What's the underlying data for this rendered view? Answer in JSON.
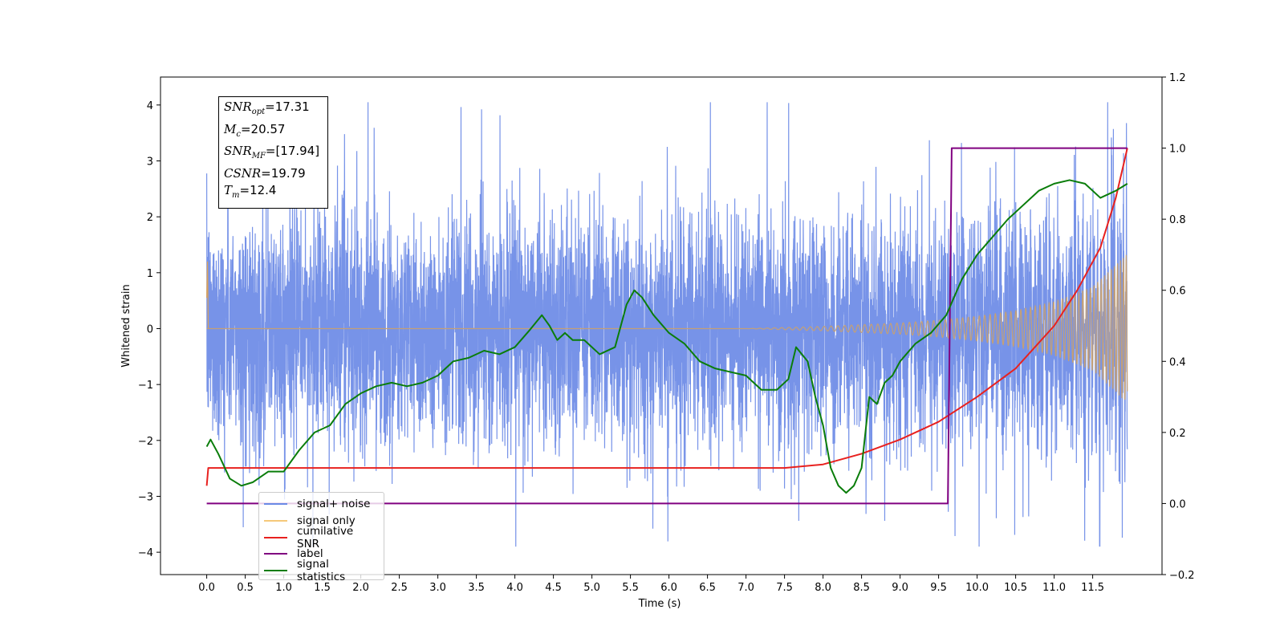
{
  "chart_data": {
    "type": "line",
    "xlabel": "Time (s)",
    "ylabel": "Whitened strain",
    "xlim": [
      -0.6,
      12.4
    ],
    "ylim": [
      -4.4,
      4.5
    ],
    "ylim_right": [
      -0.2,
      1.2
    ],
    "xticks": [
      "0.0",
      "0.5",
      "1.0",
      "1.5",
      "2.0",
      "2.5",
      "3.0",
      "3.5",
      "4.0",
      "4.5",
      "5.0",
      "5.5",
      "6.0",
      "6.5",
      "7.0",
      "7.5",
      "8.0",
      "8.5",
      "9.0",
      "9.5",
      "10.0",
      "10.5",
      "11.0",
      "11.5"
    ],
    "yticks_left": [
      "4",
      "3",
      "2",
      "1",
      "0",
      "−1",
      "−2",
      "−3",
      "−4"
    ],
    "yticks_right": [
      "1.2",
      "1.0",
      "0.8",
      "0.6",
      "0.4",
      "0.2",
      "0.0",
      "−0.2"
    ],
    "grid": false,
    "legend_placement": "lower-left",
    "annotation": {
      "snr_opt": "=17.31",
      "mc": "=20.57",
      "snr_mf": "=[17.94]",
      "csnr": "=19.79",
      "tm": "=12.4"
    },
    "series": [
      {
        "name": "signal+ noise",
        "axis": "left",
        "color": "#6b8ae6",
        "description_values": "noise with std 1.3, range [-4.0, 4.1]"
      },
      {
        "name": "signal only",
        "axis": "left",
        "color": "#f5b041",
        "envelope_x": [
          0.0,
          7.0,
          8.0,
          9.0,
          9.5,
          10.0,
          10.5,
          11.0,
          11.5,
          12.0
        ],
        "envelope_amp": [
          0.0,
          0.0,
          0.04,
          0.1,
          0.15,
          0.22,
          0.32,
          0.48,
          0.75,
          1.4
        ]
      },
      {
        "name": "cumilative SNR",
        "axis": "right",
        "color": "#e8211f",
        "x": [
          0.0,
          0.02,
          7.5,
          8.0,
          8.5,
          9.0,
          9.5,
          10.0,
          10.5,
          11.0,
          11.3,
          11.6,
          11.8,
          11.95
        ],
        "values": [
          0.05,
          0.1,
          0.1,
          0.11,
          0.14,
          0.18,
          0.23,
          0.3,
          0.38,
          0.5,
          0.6,
          0.72,
          0.86,
          1.0
        ]
      },
      {
        "name": "label",
        "axis": "right",
        "color": "#800080",
        "x": [
          0.0,
          9.62,
          9.67,
          11.95
        ],
        "values": [
          0.0,
          0.0,
          1.0,
          1.0
        ]
      },
      {
        "name": "signal statistics",
        "axis": "right",
        "color": "#0a7d0a",
        "x": [
          0.0,
          0.05,
          0.15,
          0.3,
          0.45,
          0.6,
          0.8,
          1.0,
          1.2,
          1.4,
          1.6,
          1.8,
          2.0,
          2.2,
          2.4,
          2.6,
          2.8,
          3.0,
          3.2,
          3.4,
          3.6,
          3.8,
          4.0,
          4.2,
          4.35,
          4.45,
          4.55,
          4.65,
          4.75,
          4.9,
          5.1,
          5.3,
          5.45,
          5.55,
          5.65,
          5.8,
          6.0,
          6.2,
          6.4,
          6.6,
          6.8,
          7.0,
          7.2,
          7.4,
          7.55,
          7.65,
          7.8,
          7.9,
          8.0,
          8.1,
          8.2,
          8.3,
          8.4,
          8.5,
          8.6,
          8.7,
          8.8,
          8.9,
          9.0,
          9.2,
          9.4,
          9.6,
          9.8,
          10.0,
          10.2,
          10.4,
          10.6,
          10.8,
          11.0,
          11.2,
          11.4,
          11.6,
          11.8,
          11.95
        ],
        "values": [
          0.16,
          0.18,
          0.14,
          0.07,
          0.05,
          0.06,
          0.09,
          0.09,
          0.15,
          0.2,
          0.22,
          0.28,
          0.31,
          0.33,
          0.34,
          0.33,
          0.34,
          0.36,
          0.4,
          0.41,
          0.43,
          0.42,
          0.44,
          0.49,
          0.53,
          0.5,
          0.46,
          0.48,
          0.46,
          0.46,
          0.42,
          0.44,
          0.56,
          0.6,
          0.58,
          0.53,
          0.48,
          0.45,
          0.4,
          0.38,
          0.37,
          0.36,
          0.32,
          0.32,
          0.35,
          0.44,
          0.4,
          0.3,
          0.22,
          0.1,
          0.05,
          0.03,
          0.05,
          0.1,
          0.3,
          0.28,
          0.34,
          0.36,
          0.4,
          0.45,
          0.48,
          0.53,
          0.63,
          0.7,
          0.75,
          0.8,
          0.84,
          0.88,
          0.9,
          0.91,
          0.9,
          0.86,
          0.88,
          0.9
        ]
      }
    ]
  }
}
